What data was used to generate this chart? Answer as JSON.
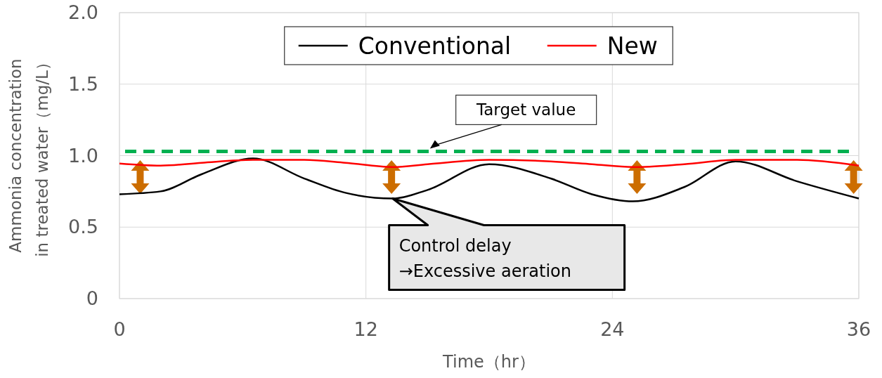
{
  "chart_data": {
    "type": "line",
    "xlabel": "Time（hr）",
    "ylabel": "Ammonia concentration\nin treated water（mg/L）",
    "x": [
      0,
      2,
      4,
      6.5,
      9,
      11,
      13.3,
      15,
      18,
      21,
      23,
      25,
      27.5,
      30,
      33,
      36
    ],
    "series": [
      {
        "name": "Conventional",
        "color": "#000000",
        "values": [
          0.73,
          0.75,
          0.87,
          0.98,
          0.84,
          0.74,
          0.7,
          0.76,
          0.94,
          0.84,
          0.73,
          0.68,
          0.78,
          0.96,
          0.82,
          0.7
        ]
      },
      {
        "name": "New",
        "color": "#ff0000",
        "values": [
          0.945,
          0.93,
          0.95,
          0.97,
          0.97,
          0.95,
          0.92,
          0.94,
          0.97,
          0.96,
          0.94,
          0.92,
          0.94,
          0.97,
          0.97,
          0.93
        ]
      }
    ],
    "xlim": [
      0,
      36
    ],
    "xticks": [
      0,
      12,
      24,
      36
    ],
    "ylim": [
      0,
      2
    ],
    "yticks": [
      0,
      {
        "value": 0.5,
        "label": "0.5"
      },
      {
        "value": 1,
        "label": "1.0"
      },
      {
        "value": 1.5,
        "label": "1.5"
      },
      {
        "value": 2,
        "label": "2.0"
      }
    ],
    "ref_lines": [
      {
        "axis": "y",
        "value": 1.03,
        "label": "Target value",
        "color": "#00b050",
        "line_style": "dashed"
      }
    ],
    "annotations": [
      {
        "text": "Control delay\n→Excessive aeration",
        "x": 13.3,
        "y": 0.7
      }
    ],
    "grid": true,
    "legend": "top",
    "marker": "none",
    "line_style": "solid"
  }
}
